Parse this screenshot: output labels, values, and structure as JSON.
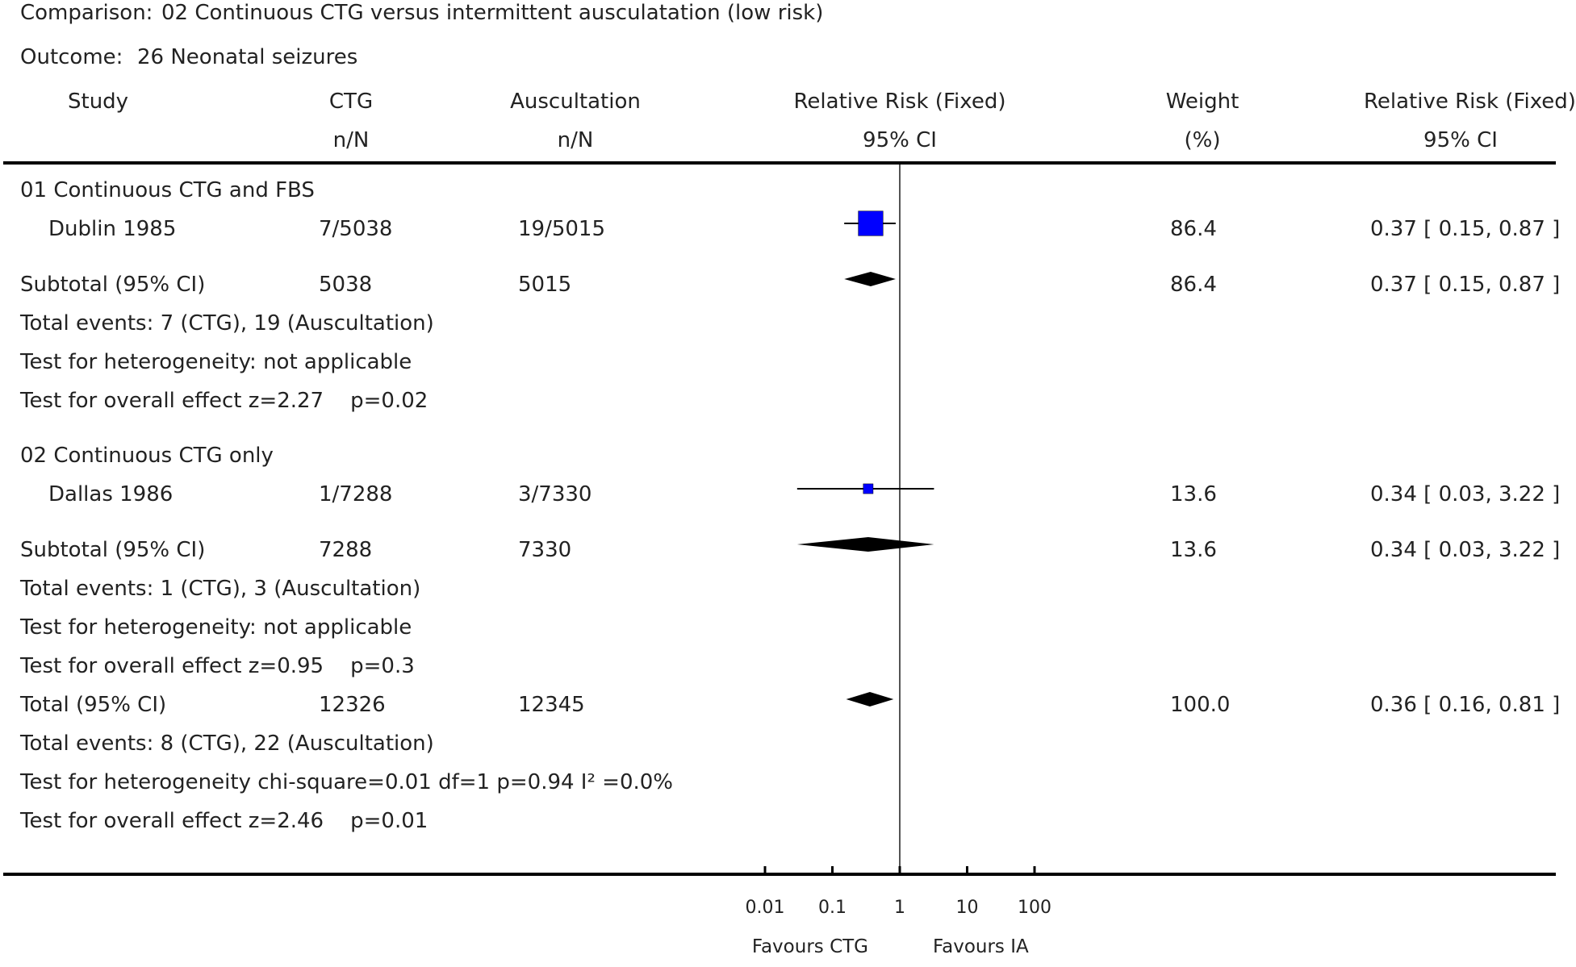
{
  "comparison": {
    "label": "Comparison:",
    "value": "02 Continuous CTG versus intermittent ausculatation (low risk)"
  },
  "outcome": {
    "label": "Outcome:",
    "value": "26 Neonatal seizures"
  },
  "headers": {
    "study": "Study",
    "ctg": "CTG",
    "ctg_sub": "n/N",
    "ausc": "Auscultation",
    "ausc_sub": "n/N",
    "rr": "Relative Risk (Fixed)",
    "rr_sub": "95% CI",
    "weight": "Weight",
    "weight_sub": "(%)",
    "rr2": "Relative Risk (Fixed)",
    "rr2_sub": "95% CI"
  },
  "groups": [
    {
      "title": "01 Continuous CTG and FBS",
      "study": {
        "name": "Dublin 1985",
        "ctg": "7/5038",
        "ausc": "19/5015",
        "weight": "86.4",
        "ci": "0.37 [ 0.15, 0.87 ]"
      },
      "subtotal": {
        "label": "Subtotal (95% CI)",
        "ctg": "5038",
        "ausc": "5015",
        "weight": "86.4",
        "ci": "0.37 [ 0.15, 0.87 ]"
      },
      "events": "Total events: 7 (CTG), 19 (Auscultation)",
      "heterogeneity": "Test for heterogeneity: not applicable",
      "overall": "Test for overall effect z=2.27    p=0.02"
    },
    {
      "title": "02 Continuous CTG only",
      "study": {
        "name": "Dallas 1986",
        "ctg": "1/7288",
        "ausc": "3/7330",
        "weight": "13.6",
        "ci": "0.34 [ 0.03, 3.22 ]"
      },
      "subtotal": {
        "label": "Subtotal (95% CI)",
        "ctg": "7288",
        "ausc": "7330",
        "weight": "13.6",
        "ci": "0.34 [ 0.03, 3.22 ]"
      },
      "events": "Total events: 1 (CTG), 3 (Auscultation)",
      "heterogeneity": "Test for heterogeneity: not applicable",
      "overall": "Test for overall effect z=0.95    p=0.3"
    }
  ],
  "total": {
    "label": "Total (95% CI)",
    "ctg": "12326",
    "ausc": "12345",
    "weight": "100.0",
    "ci": "0.36 [ 0.16, 0.81 ]",
    "events": "Total events: 8 (CTG), 22 (Auscultation)",
    "heterogeneity": "Test for heterogeneity chi-square=0.01 df=1 p=0.94 I² =0.0%",
    "overall": "Test for overall effect z=2.46    p=0.01"
  },
  "axis": {
    "ticks": [
      "0.01",
      "0.1",
      "1",
      "10",
      "100"
    ],
    "favours_left": "Favours CTG",
    "favours_right": "Favours IA"
  },
  "chart_data": {
    "type": "forest",
    "scale": "log",
    "xlim": [
      0.01,
      100
    ],
    "reference_line": 1,
    "colors": {
      "study_box": "#0000ff",
      "diamond": "#000000"
    },
    "studies": [
      {
        "name": "Dublin 1985",
        "rr": 0.37,
        "lo": 0.15,
        "hi": 0.87,
        "weight": 86.4
      },
      {
        "name": "Dallas 1986",
        "rr": 0.34,
        "lo": 0.03,
        "hi": 3.22,
        "weight": 13.6
      }
    ],
    "subtotals": [
      {
        "name": "Subtotal 01",
        "rr": 0.37,
        "lo": 0.15,
        "hi": 0.87
      },
      {
        "name": "Subtotal 02",
        "rr": 0.34,
        "lo": 0.03,
        "hi": 3.22
      }
    ],
    "total": {
      "rr": 0.36,
      "lo": 0.16,
      "hi": 0.81
    }
  }
}
